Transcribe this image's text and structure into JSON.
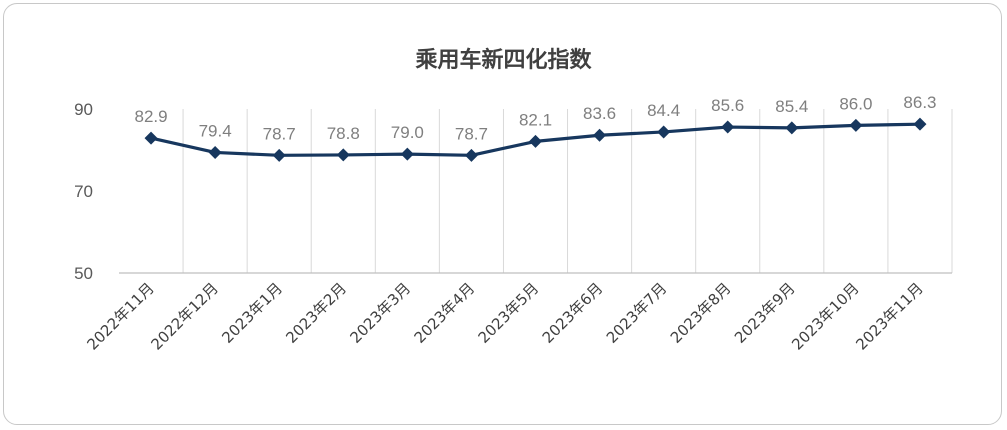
{
  "chart_data": {
    "type": "line",
    "title": "乘用车新四化指数",
    "categories": [
      "2022年11月",
      "2022年12月",
      "2023年1月",
      "2023年2月",
      "2023年3月",
      "2023年4月",
      "2023年5月",
      "2023年6月",
      "2023年7月",
      "2023年8月",
      "2023年9月",
      "2023年10月",
      "2023年11月"
    ],
    "values": [
      82.9,
      79.4,
      78.7,
      78.8,
      79.0,
      78.7,
      82.1,
      83.6,
      84.4,
      85.6,
      85.4,
      86.0,
      86.3
    ],
    "value_labels": [
      "82.9",
      "79.4",
      "78.7",
      "78.8",
      "79.0",
      "78.7",
      "82.1",
      "83.6",
      "84.4",
      "85.6",
      "85.4",
      "86.0",
      "86.3"
    ],
    "ylim": [
      50,
      90
    ],
    "yticks": [
      50,
      70,
      90
    ],
    "grid": "vertical",
    "line_color": "#17375e",
    "marker": "diamond"
  }
}
